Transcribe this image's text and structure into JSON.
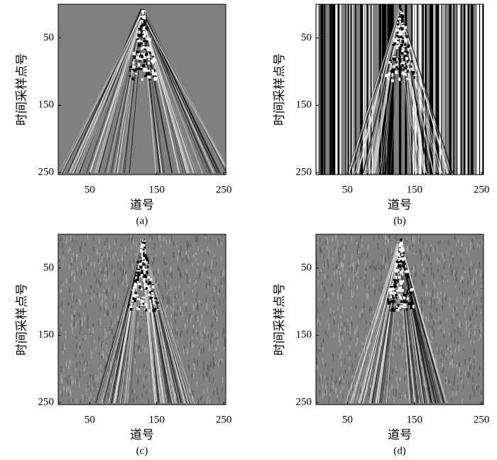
{
  "chart_data": [
    {
      "type": "image",
      "xlabel": "道号",
      "ylabel": "时间采样点号",
      "caption": "(a)",
      "xlim": [
        3,
        253
      ],
      "ylim": [
        0,
        253
      ],
      "y_inverted": true,
      "xticks": [
        50,
        150,
        250
      ],
      "yticks": [
        50,
        150,
        250
      ]
    },
    {
      "type": "image",
      "xlabel": "道号",
      "ylabel": "时间采样点号",
      "caption": "(b)",
      "xlim": [
        3,
        253
      ],
      "ylim": [
        0,
        253
      ],
      "y_inverted": true,
      "xticks": [
        50,
        150,
        250
      ],
      "yticks": [
        50,
        150,
        250
      ]
    },
    {
      "type": "image",
      "xlabel": "道号",
      "ylabel": "时间采样点号",
      "caption": "(c)",
      "xlim": [
        3,
        253
      ],
      "ylim": [
        0,
        253
      ],
      "y_inverted": true,
      "xticks": [
        50,
        150,
        250
      ],
      "yticks": [
        50,
        150,
        250
      ]
    },
    {
      "type": "image",
      "xlabel": "道号",
      "ylabel": "时间采样点号",
      "caption": "(d)",
      "xlim": [
        3,
        253
      ],
      "ylim": [
        0,
        253
      ],
      "y_inverted": true,
      "xticks": [
        50,
        150,
        250
      ],
      "yticks": [
        50,
        150,
        250
      ]
    }
  ]
}
